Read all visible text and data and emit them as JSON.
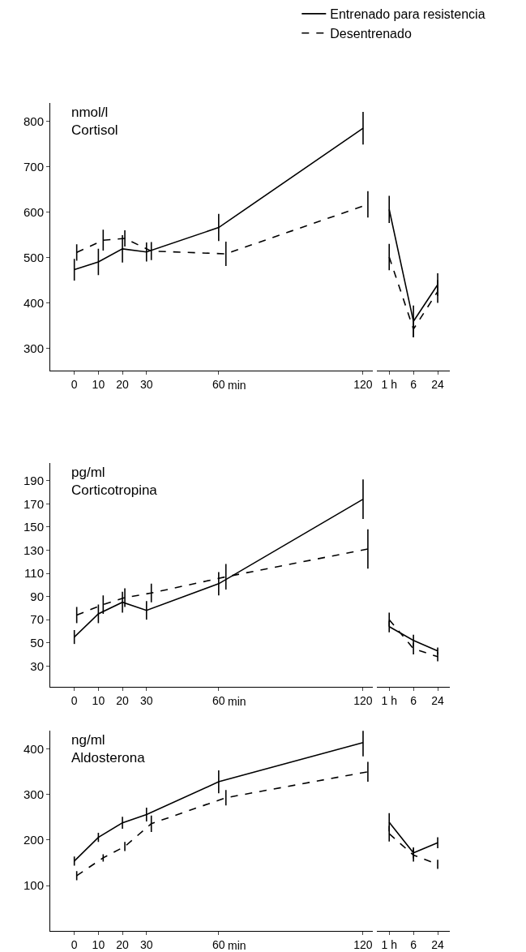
{
  "chart_data": [
    {
      "type": "line",
      "title": "Cortisol",
      "ylabel": "nmol/l",
      "xlabel": "min",
      "xlim": [
        -10,
        124
      ],
      "xticks": [
        0,
        10,
        20,
        30,
        60,
        120
      ],
      "ylim": [
        250,
        840
      ],
      "yticks": [
        300,
        400,
        500,
        600,
        700,
        800
      ],
      "legend": "top right",
      "grid": false,
      "marker": "none",
      "series": [
        {
          "name": "Entrenado para resistencia",
          "color": "#000000",
          "line_style": "solid",
          "x": [
            0,
            10,
            20,
            30,
            60,
            120
          ],
          "values": [
            473,
            490,
            519,
            512,
            566,
            785
          ],
          "errors": [
            24,
            29,
            30,
            21,
            30,
            36
          ]
        },
        {
          "name": "Desentrenado",
          "color": "#000000",
          "line_style": "dashed",
          "x": [
            1,
            12,
            21,
            32,
            63,
            122
          ],
          "values": [
            511,
            538,
            542,
            514,
            508,
            617
          ],
          "errors": [
            18,
            23,
            18,
            20,
            27,
            29
          ]
        }
      ]
    },
    {
      "type": "line",
      "categories": [
        "1 h",
        "6",
        "24"
      ],
      "ylim": [
        250,
        800
      ],
      "yticks": [
        300,
        400,
        500,
        600,
        700,
        800
      ],
      "tick_labels": "x",
      "grid": false,
      "marker": "none",
      "series": [
        {
          "color": "#000000",
          "line_style": "solid",
          "values": [
            606,
            359,
            440
          ],
          "errors": [
            30,
            35,
            25
          ]
        },
        {
          "color": "#000000",
          "line_style": "dashed",
          "values": [
            501,
            342,
            425
          ],
          "errors": [
            29,
            18,
            25
          ]
        }
      ]
    },
    {
      "type": "line",
      "title": "Corticotropina",
      "ylabel": "pg/ml",
      "xlabel": "min",
      "xlim": [
        -10,
        124
      ],
      "xticks": [
        0,
        10,
        20,
        30,
        60,
        120
      ],
      "ylim": [
        12,
        205
      ],
      "yticks": [
        30,
        50,
        70,
        90,
        110,
        130,
        150,
        170,
        190
      ],
      "grid": false,
      "marker": "none",
      "series": [
        {
          "color": "#000000",
          "line_style": "solid",
          "x": [
            0,
            10,
            20,
            30,
            60,
            120
          ],
          "values": [
            55,
            75,
            85,
            78,
            101,
            174
          ],
          "errors": [
            6,
            8,
            9,
            8,
            10,
            17
          ]
        },
        {
          "color": "#000000",
          "line_style": "dashed",
          "x": [
            1,
            12,
            21,
            32,
            63,
            122
          ],
          "values": [
            74,
            83,
            89,
            93,
            107,
            131
          ],
          "errors": [
            7,
            8,
            8,
            8,
            11,
            17
          ]
        }
      ]
    },
    {
      "type": "line",
      "categories": [
        "1 h",
        "6",
        "24"
      ],
      "ylim": [
        12,
        190
      ],
      "yticks": [
        30,
        50,
        70,
        90,
        110,
        130,
        150,
        170,
        190
      ],
      "tick_labels": "x",
      "grid": false,
      "marker": "none",
      "series": [
        {
          "color": "#000000",
          "line_style": "solid",
          "values": [
            64,
            52,
            43
          ],
          "errors": [
            5,
            5,
            3
          ]
        },
        {
          "color": "#000000",
          "line_style": "dashed",
          "values": [
            70,
            45,
            38
          ],
          "errors": [
            6,
            5,
            4
          ]
        }
      ]
    },
    {
      "type": "line",
      "title": "Aldosterona",
      "ylabel": "ng/ml",
      "xlabel": "min",
      "xlim": [
        -10,
        124
      ],
      "xticks": [
        0,
        10,
        20,
        30,
        60,
        120
      ],
      "ylim": [
        0,
        440
      ],
      "yticks": [
        100,
        200,
        300,
        400
      ],
      "grid": false,
      "marker": "none",
      "series": [
        {
          "color": "#000000",
          "line_style": "solid",
          "x": [
            0,
            10,
            20,
            30,
            60,
            120
          ],
          "values": [
            154,
            206,
            238,
            256,
            328,
            414
          ],
          "errors": [
            10,
            10,
            13,
            15,
            25,
            30
          ]
        },
        {
          "color": "#000000",
          "line_style": "dashed",
          "x": [
            1,
            12,
            21,
            32,
            63,
            122
          ],
          "values": [
            122,
            161,
            186,
            236,
            293,
            350
          ],
          "errors": [
            10,
            8,
            10,
            18,
            17,
            22
          ]
        }
      ]
    },
    {
      "type": "line",
      "categories": [
        "1 h",
        "6",
        "24"
      ],
      "ylim": [
        0,
        400
      ],
      "yticks": [
        100,
        200,
        300,
        400
      ],
      "tick_labels": "x",
      "grid": false,
      "marker": "none",
      "series": [
        {
          "color": "#000000",
          "line_style": "solid",
          "values": [
            239,
            172,
            194
          ],
          "errors": [
            20,
            12,
            12
          ]
        },
        {
          "color": "#000000",
          "line_style": "dashed",
          "values": [
            214,
            167,
            147
          ],
          "errors": [
            17,
            14,
            10
          ]
        }
      ]
    }
  ]
}
